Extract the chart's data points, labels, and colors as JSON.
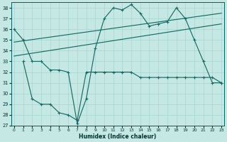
{
  "bg_color": "#c5e8e5",
  "grid_color": "#a8d4d0",
  "line_color": "#1a6b65",
  "xlabel": "Humidex (Indice chaleur)",
  "ylim": [
    27,
    38.5
  ],
  "xlim": [
    -0.3,
    23.3
  ],
  "yticks": [
    27,
    28,
    29,
    30,
    31,
    32,
    33,
    34,
    35,
    36,
    37,
    38
  ],
  "xticks": [
    0,
    1,
    2,
    3,
    4,
    5,
    6,
    7,
    8,
    9,
    10,
    11,
    12,
    13,
    14,
    15,
    16,
    17,
    18,
    19,
    20,
    21,
    22,
    23
  ],
  "line1": {
    "x": [
      0,
      1,
      2,
      3,
      4,
      5,
      6,
      7,
      8,
      9,
      10,
      11,
      12,
      13,
      14,
      15,
      16,
      17,
      18,
      19,
      20,
      21,
      22,
      23
    ],
    "y": [
      36.0,
      35.0,
      33.0,
      33.0,
      32.2,
      32.2,
      32.0,
      27.2,
      29.5,
      34.2,
      37.0,
      38.0,
      37.8,
      38.3,
      37.5,
      36.3,
      36.5,
      36.7,
      38.0,
      37.0,
      35.0,
      33.0,
      31.0,
      31.0
    ],
    "marker": "+"
  },
  "line2": {
    "x": [
      1,
      2,
      3,
      4,
      5,
      6,
      7,
      8,
      9,
      10,
      11,
      12,
      13,
      14,
      15,
      16,
      17,
      18,
      19,
      20,
      21,
      22,
      23
    ],
    "y": [
      33.0,
      29.5,
      29.0,
      29.0,
      28.2,
      28.0,
      27.5,
      32.0,
      32.0,
      32.0,
      32.0,
      32.0,
      32.0,
      31.5,
      31.5,
      31.5,
      31.5,
      31.5,
      31.5,
      31.5,
      31.5,
      31.5,
      31.0
    ],
    "marker": "+"
  },
  "line3": {
    "x": [
      0,
      23
    ],
    "y": [
      33.5,
      36.5
    ],
    "marker": null
  },
  "line4": {
    "x": [
      0,
      23
    ],
    "y": [
      34.8,
      37.5
    ],
    "marker": null
  }
}
